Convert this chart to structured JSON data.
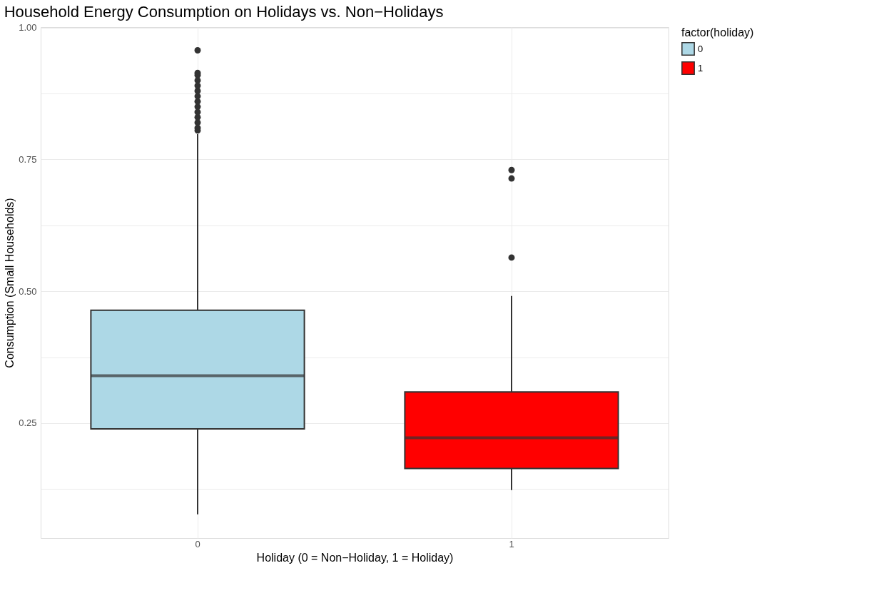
{
  "chart_data": {
    "type": "box",
    "title": "Household Energy Consumption on Holidays vs. Non−Holidays",
    "xlabel": "Holiday (0 = Non−Holiday, 1 = Holiday)",
    "ylabel": "Consumption (Small Households)",
    "legend_title": "factor(holiday)",
    "categories": [
      "0",
      "1"
    ],
    "series": [
      {
        "name": "0",
        "color": "#add8e6",
        "boxes": [
          {
            "low": 0.077,
            "q1": 0.239,
            "median": 0.34,
            "q3": 0.464,
            "high": 0.798,
            "outliers": [
              0.805,
              0.81,
              0.82,
              0.83,
              0.84,
              0.85,
              0.86,
              0.87,
              0.88,
              0.89,
              0.9,
              0.91,
              0.914,
              0.957
            ]
          },
          null
        ]
      },
      {
        "name": "1",
        "color": "#ff0000",
        "boxes": [
          null,
          {
            "low": 0.123,
            "q1": 0.164,
            "median": 0.222,
            "q3": 0.309,
            "high": 0.491,
            "outliers": [
              0.564,
              0.714,
              0.73
            ]
          }
        ]
      }
    ],
    "ylim": [
      0.032,
      1.001
    ],
    "yticks": [
      {
        "value": 0.125,
        "label": null
      },
      {
        "value": 0.25,
        "label": "0.25"
      },
      {
        "value": 0.375,
        "label": null
      },
      {
        "value": 0.5,
        "label": "0.50"
      },
      {
        "value": 0.625,
        "label": null
      },
      {
        "value": 0.75,
        "label": "0.75"
      },
      {
        "value": 0.875,
        "label": null
      },
      {
        "value": 1.0,
        "label": "1.00"
      }
    ],
    "grid": true,
    "legend": "right"
  }
}
